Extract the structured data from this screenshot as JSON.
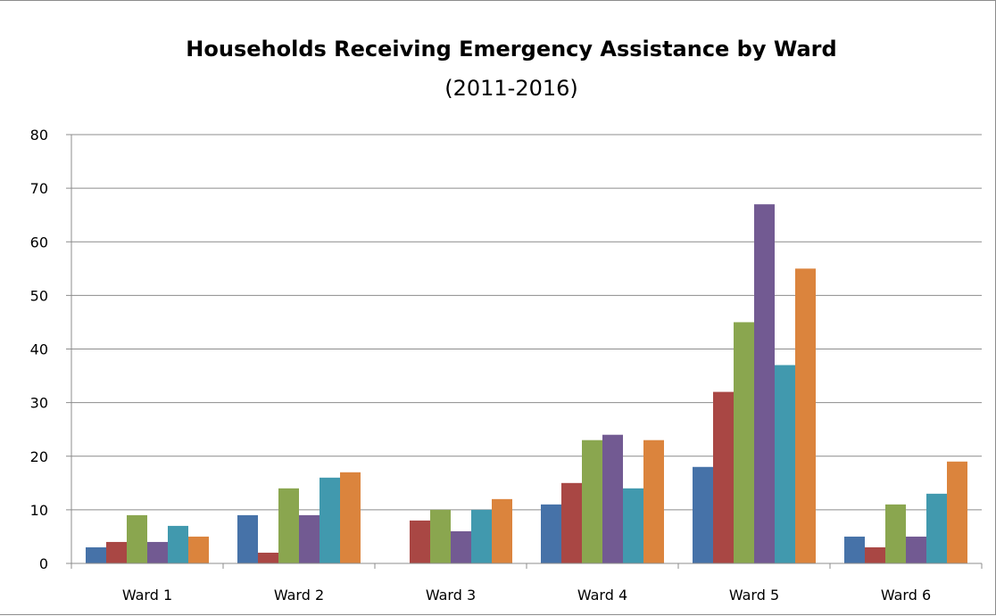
{
  "chart_data": {
    "type": "bar",
    "title": "Households Receiving Emergency Assistance by Ward",
    "subtitle": "(2011-2016)",
    "xlabel": "",
    "ylabel": "",
    "categories": [
      "Ward 1",
      "Ward 2",
      "Ward 3",
      "Ward 4",
      "Ward 5",
      "Ward 6"
    ],
    "ylim": [
      0,
      80
    ],
    "yticks": [
      "0",
      "10",
      "20",
      "30",
      "40",
      "50",
      "60",
      "70",
      "80"
    ],
    "grid": true,
    "legend": "none",
    "series": [
      {
        "color": "#4672A8",
        "values": [
          3,
          9,
          0,
          11,
          18,
          5
        ]
      },
      {
        "color": "#A94744",
        "values": [
          4,
          2,
          8,
          15,
          32,
          3
        ]
      },
      {
        "color": "#8AA64F",
        "values": [
          9,
          14,
          10,
          23,
          45,
          11
        ]
      },
      {
        "color": "#725A92",
        "values": [
          4,
          9,
          6,
          24,
          67,
          5
        ]
      },
      {
        "color": "#4199AE",
        "values": [
          7,
          16,
          10,
          14,
          37,
          13
        ]
      },
      {
        "color": "#DB843D",
        "values": [
          5,
          17,
          12,
          23,
          55,
          19
        ]
      }
    ],
    "colors": {
      "gridline": "#8c8c8c",
      "axis": "#8c8c8c"
    }
  }
}
